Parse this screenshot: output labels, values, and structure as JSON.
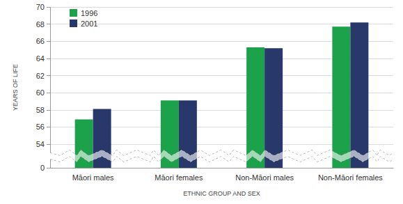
{
  "chart_data": {
    "type": "bar",
    "x_label": "ETHNIC GROUP AND SEX",
    "y_label": "YEARS OF LIFE",
    "categories": [
      "Māori males",
      "Māori females",
      "Non-Māori males",
      "Non-Māori females"
    ],
    "series": [
      {
        "name": "1996",
        "color": "#1ba24a",
        "values": [
          56.9,
          59.1,
          65.3,
          67.7
        ]
      },
      {
        "name": "2001",
        "color": "#28386b",
        "values": [
          58.1,
          59.1,
          65.2,
          68.2
        ]
      }
    ],
    "ylim": [
      0,
      70
    ],
    "yticks": [
      0,
      54,
      56,
      58,
      60,
      62,
      64,
      66,
      68,
      70
    ],
    "grid": true,
    "legend": "top-left"
  }
}
